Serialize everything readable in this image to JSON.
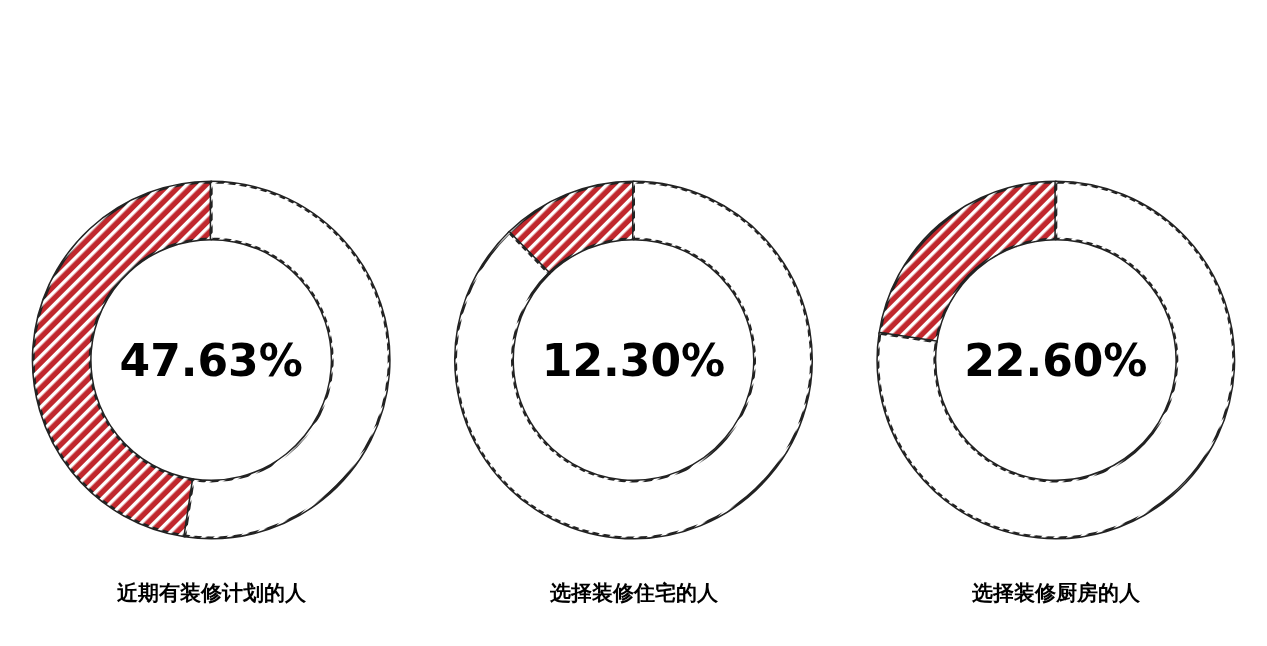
{
  "chart_data": [
    {
      "type": "donut",
      "title": "近期有装修计划的人",
      "categories": [
        null,
        null
      ],
      "values": [
        47.63,
        52.37
      ],
      "colors": [
        "#c0272d",
        "#ffffff"
      ],
      "annotations": [
        "47.63%"
      ]
    },
    {
      "type": "donut",
      "title": "选择装修住宅的人",
      "categories": [
        null,
        null
      ],
      "values": [
        12.3,
        87.7
      ],
      "colors": [
        "#c0272d",
        "#ffffff"
      ],
      "annotations": [
        "12.30%"
      ]
    },
    {
      "type": "donut",
      "title": "选择装修厨房的人",
      "categories": [
        null,
        null
      ],
      "values": [
        22.6,
        77.4
      ],
      "colors": [
        "#c0272d",
        "#ffffff"
      ],
      "annotations": [
        "22.60%"
      ]
    }
  ]
}
